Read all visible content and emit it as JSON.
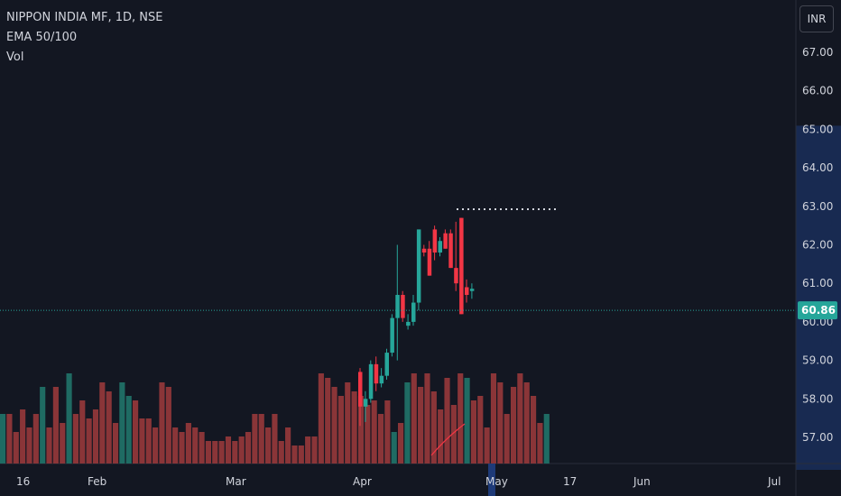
{
  "legend": {
    "symbol_line": "NIPPON INDIA MF, 1D, NSE",
    "ema_label": "EMA 50/100",
    "vol_label": "Vol"
  },
  "currency": "INR",
  "colors": {
    "background": "#131722",
    "up": "#26a69a",
    "down": "#f23645",
    "volume_up": "#1f6b63",
    "volume_down": "#8a3538",
    "ema": "#f23645",
    "price_tag": "#26a69a",
    "range_band": "#1e3a78"
  },
  "chart_data": {
    "type": "candlestick",
    "y_ticks": [
      "57.00",
      "58.00",
      "59.00",
      "60.00",
      "61.00",
      "62.00",
      "63.00",
      "64.00",
      "65.00",
      "66.00",
      "67.00"
    ],
    "x_ticks": [
      "16",
      "Feb",
      "Mar",
      "Apr",
      "May",
      "17",
      "Jun",
      "Jul"
    ],
    "last_price": "60.86",
    "candles": [
      {
        "o": 58.7,
        "h": 58.8,
        "l": 57.3,
        "c": 57.8
      },
      {
        "o": 57.8,
        "h": 58.2,
        "l": 57.4,
        "c": 58.0
      },
      {
        "o": 58.0,
        "h": 59.0,
        "l": 57.9,
        "c": 58.9
      },
      {
        "o": 58.9,
        "h": 59.1,
        "l": 58.2,
        "c": 58.4
      },
      {
        "o": 58.4,
        "h": 58.8,
        "l": 58.3,
        "c": 58.6
      },
      {
        "o": 58.6,
        "h": 59.3,
        "l": 58.5,
        "c": 59.2
      },
      {
        "o": 59.2,
        "h": 60.2,
        "l": 59.1,
        "c": 60.1
      },
      {
        "o": 60.1,
        "h": 62.0,
        "l": 59.0,
        "c": 60.7
      },
      {
        "o": 60.7,
        "h": 60.8,
        "l": 60.0,
        "c": 60.1
      },
      {
        "o": 59.9,
        "h": 60.2,
        "l": 59.8,
        "c": 60.0
      },
      {
        "o": 60.0,
        "h": 60.7,
        "l": 59.9,
        "c": 60.5
      },
      {
        "o": 60.5,
        "h": 62.4,
        "l": 60.3,
        "c": 62.4
      },
      {
        "o": 61.9,
        "h": 62.0,
        "l": 61.7,
        "c": 61.8
      },
      {
        "o": 61.9,
        "h": 62.1,
        "l": 61.2,
        "c": 61.2
      },
      {
        "o": 62.4,
        "h": 62.5,
        "l": 61.6,
        "c": 61.8
      },
      {
        "o": 61.8,
        "h": 62.2,
        "l": 61.7,
        "c": 62.1
      },
      {
        "o": 62.3,
        "h": 62.4,
        "l": 61.9,
        "c": 61.9
      },
      {
        "o": 62.3,
        "h": 62.4,
        "l": 61.4,
        "c": 61.4
      },
      {
        "o": 61.4,
        "h": 62.6,
        "l": 60.8,
        "c": 61.0
      },
      {
        "o": 62.7,
        "h": 62.7,
        "l": 60.2,
        "c": 60.2
      },
      {
        "o": 60.9,
        "h": 61.1,
        "l": 60.5,
        "c": 60.7
      },
      {
        "o": 60.8,
        "h": 61.0,
        "l": 60.6,
        "c": 60.86
      }
    ],
    "volume": [
      {
        "v": 0.55,
        "up": true
      },
      {
        "v": 0.55,
        "up": false
      },
      {
        "v": 0.35,
        "up": false
      },
      {
        "v": 0.6,
        "up": false
      },
      {
        "v": 0.4,
        "up": false
      },
      {
        "v": 0.55,
        "up": false
      },
      {
        "v": 0.85,
        "up": true
      },
      {
        "v": 0.4,
        "up": false
      },
      {
        "v": 0.85,
        "up": false
      },
      {
        "v": 0.45,
        "up": false
      },
      {
        "v": 1.0,
        "up": true
      },
      {
        "v": 0.55,
        "up": false
      },
      {
        "v": 0.7,
        "up": false
      },
      {
        "v": 0.5,
        "up": false
      },
      {
        "v": 0.6,
        "up": false
      },
      {
        "v": 0.9,
        "up": false
      },
      {
        "v": 0.8,
        "up": false
      },
      {
        "v": 0.45,
        "up": false
      },
      {
        "v": 0.9,
        "up": true
      },
      {
        "v": 0.75,
        "up": true
      },
      {
        "v": 0.7,
        "up": false
      },
      {
        "v": 0.5,
        "up": false
      },
      {
        "v": 0.5,
        "up": false
      },
      {
        "v": 0.4,
        "up": false
      },
      {
        "v": 0.9,
        "up": false
      },
      {
        "v": 0.85,
        "up": false
      },
      {
        "v": 0.4,
        "up": false
      },
      {
        "v": 0.35,
        "up": false
      },
      {
        "v": 0.45,
        "up": false
      },
      {
        "v": 0.4,
        "up": false
      },
      {
        "v": 0.35,
        "up": false
      },
      {
        "v": 0.25,
        "up": false
      },
      {
        "v": 0.25,
        "up": false
      },
      {
        "v": 0.25,
        "up": false
      },
      {
        "v": 0.3,
        "up": false
      },
      {
        "v": 0.25,
        "up": false
      },
      {
        "v": 0.3,
        "up": false
      },
      {
        "v": 0.35,
        "up": false
      },
      {
        "v": 0.55,
        "up": false
      },
      {
        "v": 0.55,
        "up": false
      },
      {
        "v": 0.4,
        "up": false
      },
      {
        "v": 0.55,
        "up": false
      },
      {
        "v": 0.25,
        "up": false
      },
      {
        "v": 0.4,
        "up": false
      },
      {
        "v": 0.2,
        "up": false
      },
      {
        "v": 0.2,
        "up": false
      },
      {
        "v": 0.3,
        "up": false
      },
      {
        "v": 0.3,
        "up": false
      },
      {
        "v": 1.0,
        "up": false
      },
      {
        "v": 0.95,
        "up": false
      },
      {
        "v": 0.85,
        "up": false
      },
      {
        "v": 0.75,
        "up": false
      },
      {
        "v": 0.9,
        "up": false
      },
      {
        "v": 0.8,
        "up": false
      },
      {
        "v": 0.75,
        "up": false
      },
      {
        "v": 0.65,
        "up": false
      },
      {
        "v": 0.7,
        "up": false
      },
      {
        "v": 0.55,
        "up": false
      },
      {
        "v": 0.7,
        "up": false
      },
      {
        "v": 0.35,
        "up": true
      },
      {
        "v": 0.45,
        "up": false
      },
      {
        "v": 0.9,
        "up": true
      },
      {
        "v": 1.0,
        "up": false
      },
      {
        "v": 0.85,
        "up": false
      },
      {
        "v": 1.0,
        "up": false
      },
      {
        "v": 0.8,
        "up": false
      },
      {
        "v": 0.6,
        "up": false
      },
      {
        "v": 0.95,
        "up": false
      },
      {
        "v": 0.65,
        "up": false
      },
      {
        "v": 1.0,
        "up": false
      },
      {
        "v": 0.95,
        "up": true
      },
      {
        "v": 0.7,
        "up": false
      },
      {
        "v": 0.75,
        "up": false
      },
      {
        "v": 0.4,
        "up": false
      },
      {
        "v": 1.0,
        "up": false
      },
      {
        "v": 0.9,
        "up": false
      },
      {
        "v": 0.55,
        "up": false
      },
      {
        "v": 0.85,
        "up": false
      },
      {
        "v": 1.0,
        "up": false
      },
      {
        "v": 0.9,
        "up": false
      },
      {
        "v": 0.75,
        "up": false
      },
      {
        "v": 0.45,
        "up": false
      },
      {
        "v": 0.55,
        "up": true
      }
    ]
  }
}
